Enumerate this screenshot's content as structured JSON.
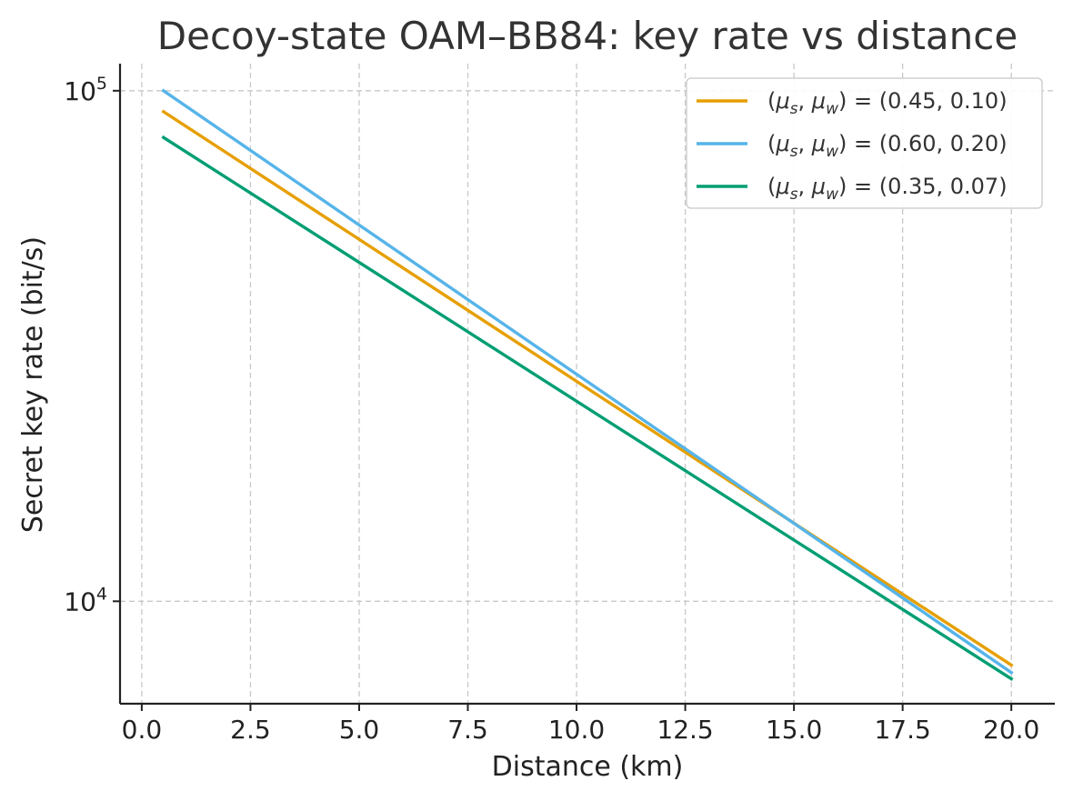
{
  "chart_data": {
    "type": "line",
    "title": "Decoy-state OAM–BB84: key rate vs distance",
    "xlabel": "Distance (km)",
    "ylabel": "Secret key rate (bit/s)",
    "xlim": [
      -0.5,
      21.0
    ],
    "ylim": [
      6300,
      113000
    ],
    "yscale": "log",
    "grid": true,
    "legend_position": "top-right",
    "x_ticks": [
      0.0,
      2.5,
      5.0,
      7.5,
      10.0,
      12.5,
      15.0,
      17.5,
      20.0
    ],
    "x_tick_labels": [
      "0.0",
      "2.5",
      "5.0",
      "7.5",
      "10.0",
      "12.5",
      "15.0",
      "17.5",
      "20.0"
    ],
    "y_ticks": [
      {
        "value": 100000,
        "base": "10",
        "exp": "5"
      },
      {
        "value": 10000,
        "base": "10",
        "exp": "4"
      }
    ],
    "series": [
      {
        "name": "(μs, μw) = (0.45, 0.10)",
        "legend": {
          "mu_s": "μ",
          "sub_s": "s",
          "mu_w": "μ",
          "sub_w": "w",
          "prefix": "(",
          "sep": ", ",
          "mid": ") = (",
          "values": "0.45, 0.10",
          "suffix": ")"
        },
        "color": "#E69F00",
        "x": [
          0.5,
          20.0
        ],
        "values": [
          91000,
          7500
        ]
      },
      {
        "name": "(μs, μw) = (0.60, 0.20)",
        "legend": {
          "mu_s": "μ",
          "sub_s": "s",
          "mu_w": "μ",
          "sub_w": "w",
          "prefix": "(",
          "sep": ", ",
          "mid": ") = (",
          "values": "0.60, 0.20",
          "suffix": ")"
        },
        "color": "#56B4E9",
        "x": [
          0.5,
          20.0
        ],
        "values": [
          100000,
          7250
        ]
      },
      {
        "name": "(μs, μw) = (0.35, 0.07)",
        "legend": {
          "mu_s": "μ",
          "sub_s": "s",
          "mu_w": "μ",
          "sub_w": "w",
          "prefix": "(",
          "sep": ", ",
          "mid": ") = (",
          "values": "0.35, 0.07",
          "suffix": ")"
        },
        "color": "#009E73",
        "x": [
          0.5,
          20.0
        ],
        "values": [
          81000,
          7050
        ]
      }
    ]
  }
}
